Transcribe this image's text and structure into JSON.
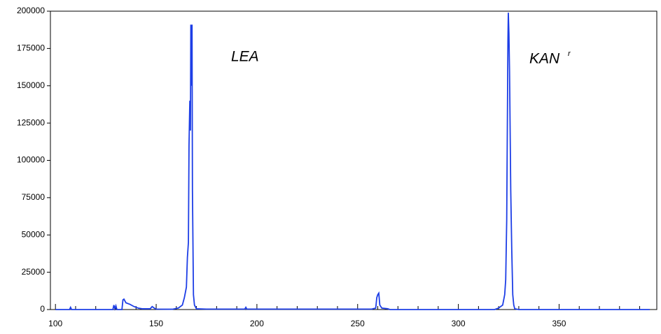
{
  "chart_data": {
    "type": "line",
    "annotations": [
      "LEA",
      "KAN",
      "r"
    ],
    "x": [
      100,
      107,
      107.5,
      108,
      128.5,
      129,
      129.5,
      130,
      130.5,
      133,
      133.5,
      134,
      135,
      137,
      139,
      141,
      143,
      147,
      148,
      149,
      150,
      158,
      161,
      163,
      164,
      165,
      165.5,
      166,
      166.3,
      166.7,
      167,
      167.2,
      167.5,
      167.8,
      168,
      168.5,
      169,
      170,
      175,
      194,
      194.5,
      195,
      257,
      259,
      259.5,
      260,
      260.5,
      261,
      262,
      265,
      266,
      318,
      320,
      322,
      323,
      323.5,
      324,
      324.3,
      324.6,
      324.8,
      325.1,
      325.4,
      325.7,
      326,
      326.5,
      327,
      327.5,
      328,
      330,
      395
    ],
    "series": [
      {
        "color": "#1d3ee6",
        "values": [
          0,
          0,
          1500,
          0,
          0,
          3000,
          500,
          2500,
          0,
          0,
          6500,
          7000,
          4500,
          3500,
          2000,
          1000,
          500,
          500,
          2000,
          1000,
          300,
          200,
          1000,
          3000,
          8000,
          15000,
          35000,
          45000,
          110000,
          140000,
          120000,
          191000,
          150000,
          191000,
          80000,
          10000,
          3000,
          500,
          300,
          300,
          1500,
          300,
          300,
          1000,
          8000,
          10000,
          11000,
          3000,
          1000,
          500,
          0,
          0,
          1000,
          3000,
          10000,
          20000,
          60000,
          120000,
          180000,
          199000,
          185000,
          160000,
          120000,
          80000,
          40000,
          10000,
          3000,
          500,
          0,
          0
        ]
      }
    ],
    "xlim": [
      97.5,
      398.5
    ],
    "ylim": [
      0,
      200000
    ],
    "xticks": [
      100,
      150,
      200,
      250,
      300,
      350
    ],
    "xminorticks": [
      110,
      120,
      130,
      140,
      160,
      170,
      180,
      190,
      210,
      220,
      230,
      240,
      260,
      270,
      280,
      290,
      310,
      320,
      330,
      340,
      360,
      370,
      380,
      390
    ],
    "yticks": [
      0,
      25000,
      50000,
      75000,
      100000,
      125000,
      150000,
      175000,
      200000
    ]
  }
}
